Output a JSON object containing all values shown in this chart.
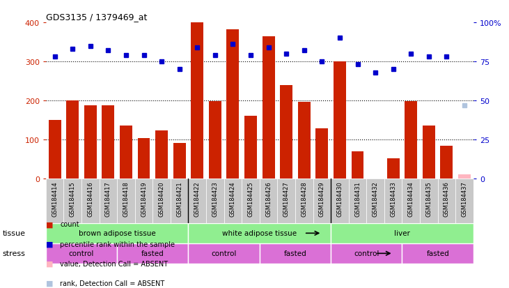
{
  "title": "GDS3135 / 1379469_at",
  "samples": [
    "GSM184414",
    "GSM184415",
    "GSM184416",
    "GSM184417",
    "GSM184418",
    "GSM184419",
    "GSM184420",
    "GSM184421",
    "GSM184422",
    "GSM184423",
    "GSM184424",
    "GSM184425",
    "GSM184426",
    "GSM184427",
    "GSM184428",
    "GSM184429",
    "GSM184430",
    "GSM184431",
    "GSM184432",
    "GSM184433",
    "GSM184434",
    "GSM184435",
    "GSM184436",
    "GSM184437"
  ],
  "counts": [
    150,
    200,
    188,
    188,
    135,
    103,
    122,
    90,
    400,
    198,
    382,
    160,
    365,
    240,
    197,
    128,
    300,
    70,
    0,
    52,
    198,
    135,
    83,
    10
  ],
  "percentile_ranks": [
    78,
    83,
    85,
    82,
    79,
    79,
    75,
    70,
    84,
    79,
    86,
    79,
    84,
    80,
    82,
    75,
    90,
    73,
    68,
    70,
    80,
    78,
    78,
    47
  ],
  "count_absent": [
    false,
    false,
    false,
    false,
    false,
    false,
    false,
    false,
    false,
    false,
    false,
    false,
    false,
    false,
    false,
    false,
    false,
    false,
    false,
    false,
    false,
    false,
    false,
    true
  ],
  "rank_absent": [
    false,
    false,
    false,
    false,
    false,
    false,
    false,
    false,
    false,
    false,
    false,
    false,
    false,
    false,
    false,
    false,
    false,
    false,
    false,
    false,
    false,
    false,
    false,
    true
  ],
  "ylim_left": [
    0,
    400
  ],
  "ylim_right": [
    0,
    100
  ],
  "yticks_left": [
    0,
    100,
    200,
    300,
    400
  ],
  "yticks_right": [
    0,
    25,
    50,
    75,
    100
  ],
  "bar_color": "#CC2200",
  "bar_color_absent": "#FFB6C1",
  "dot_color": "#0000CC",
  "dot_color_absent": "#B0C4DE",
  "label_bg": "#C8C8C8",
  "tissue_color": "#90EE90",
  "stress_color": "#DA70D6",
  "tissue_groups": [
    {
      "label": "brown adipose tissue",
      "start": 0,
      "end": 8
    },
    {
      "label": "white adipose tissue",
      "start": 8,
      "end": 16
    },
    {
      "label": "liver",
      "start": 16,
      "end": 24
    }
  ],
  "stress_groups": [
    {
      "label": "control",
      "start": 0,
      "end": 4
    },
    {
      "label": "fasted",
      "start": 4,
      "end": 8
    },
    {
      "label": "control",
      "start": 8,
      "end": 12
    },
    {
      "label": "fasted",
      "start": 12,
      "end": 16
    },
    {
      "label": "control",
      "start": 16,
      "end": 20
    },
    {
      "label": "fasted",
      "start": 20,
      "end": 24
    }
  ]
}
